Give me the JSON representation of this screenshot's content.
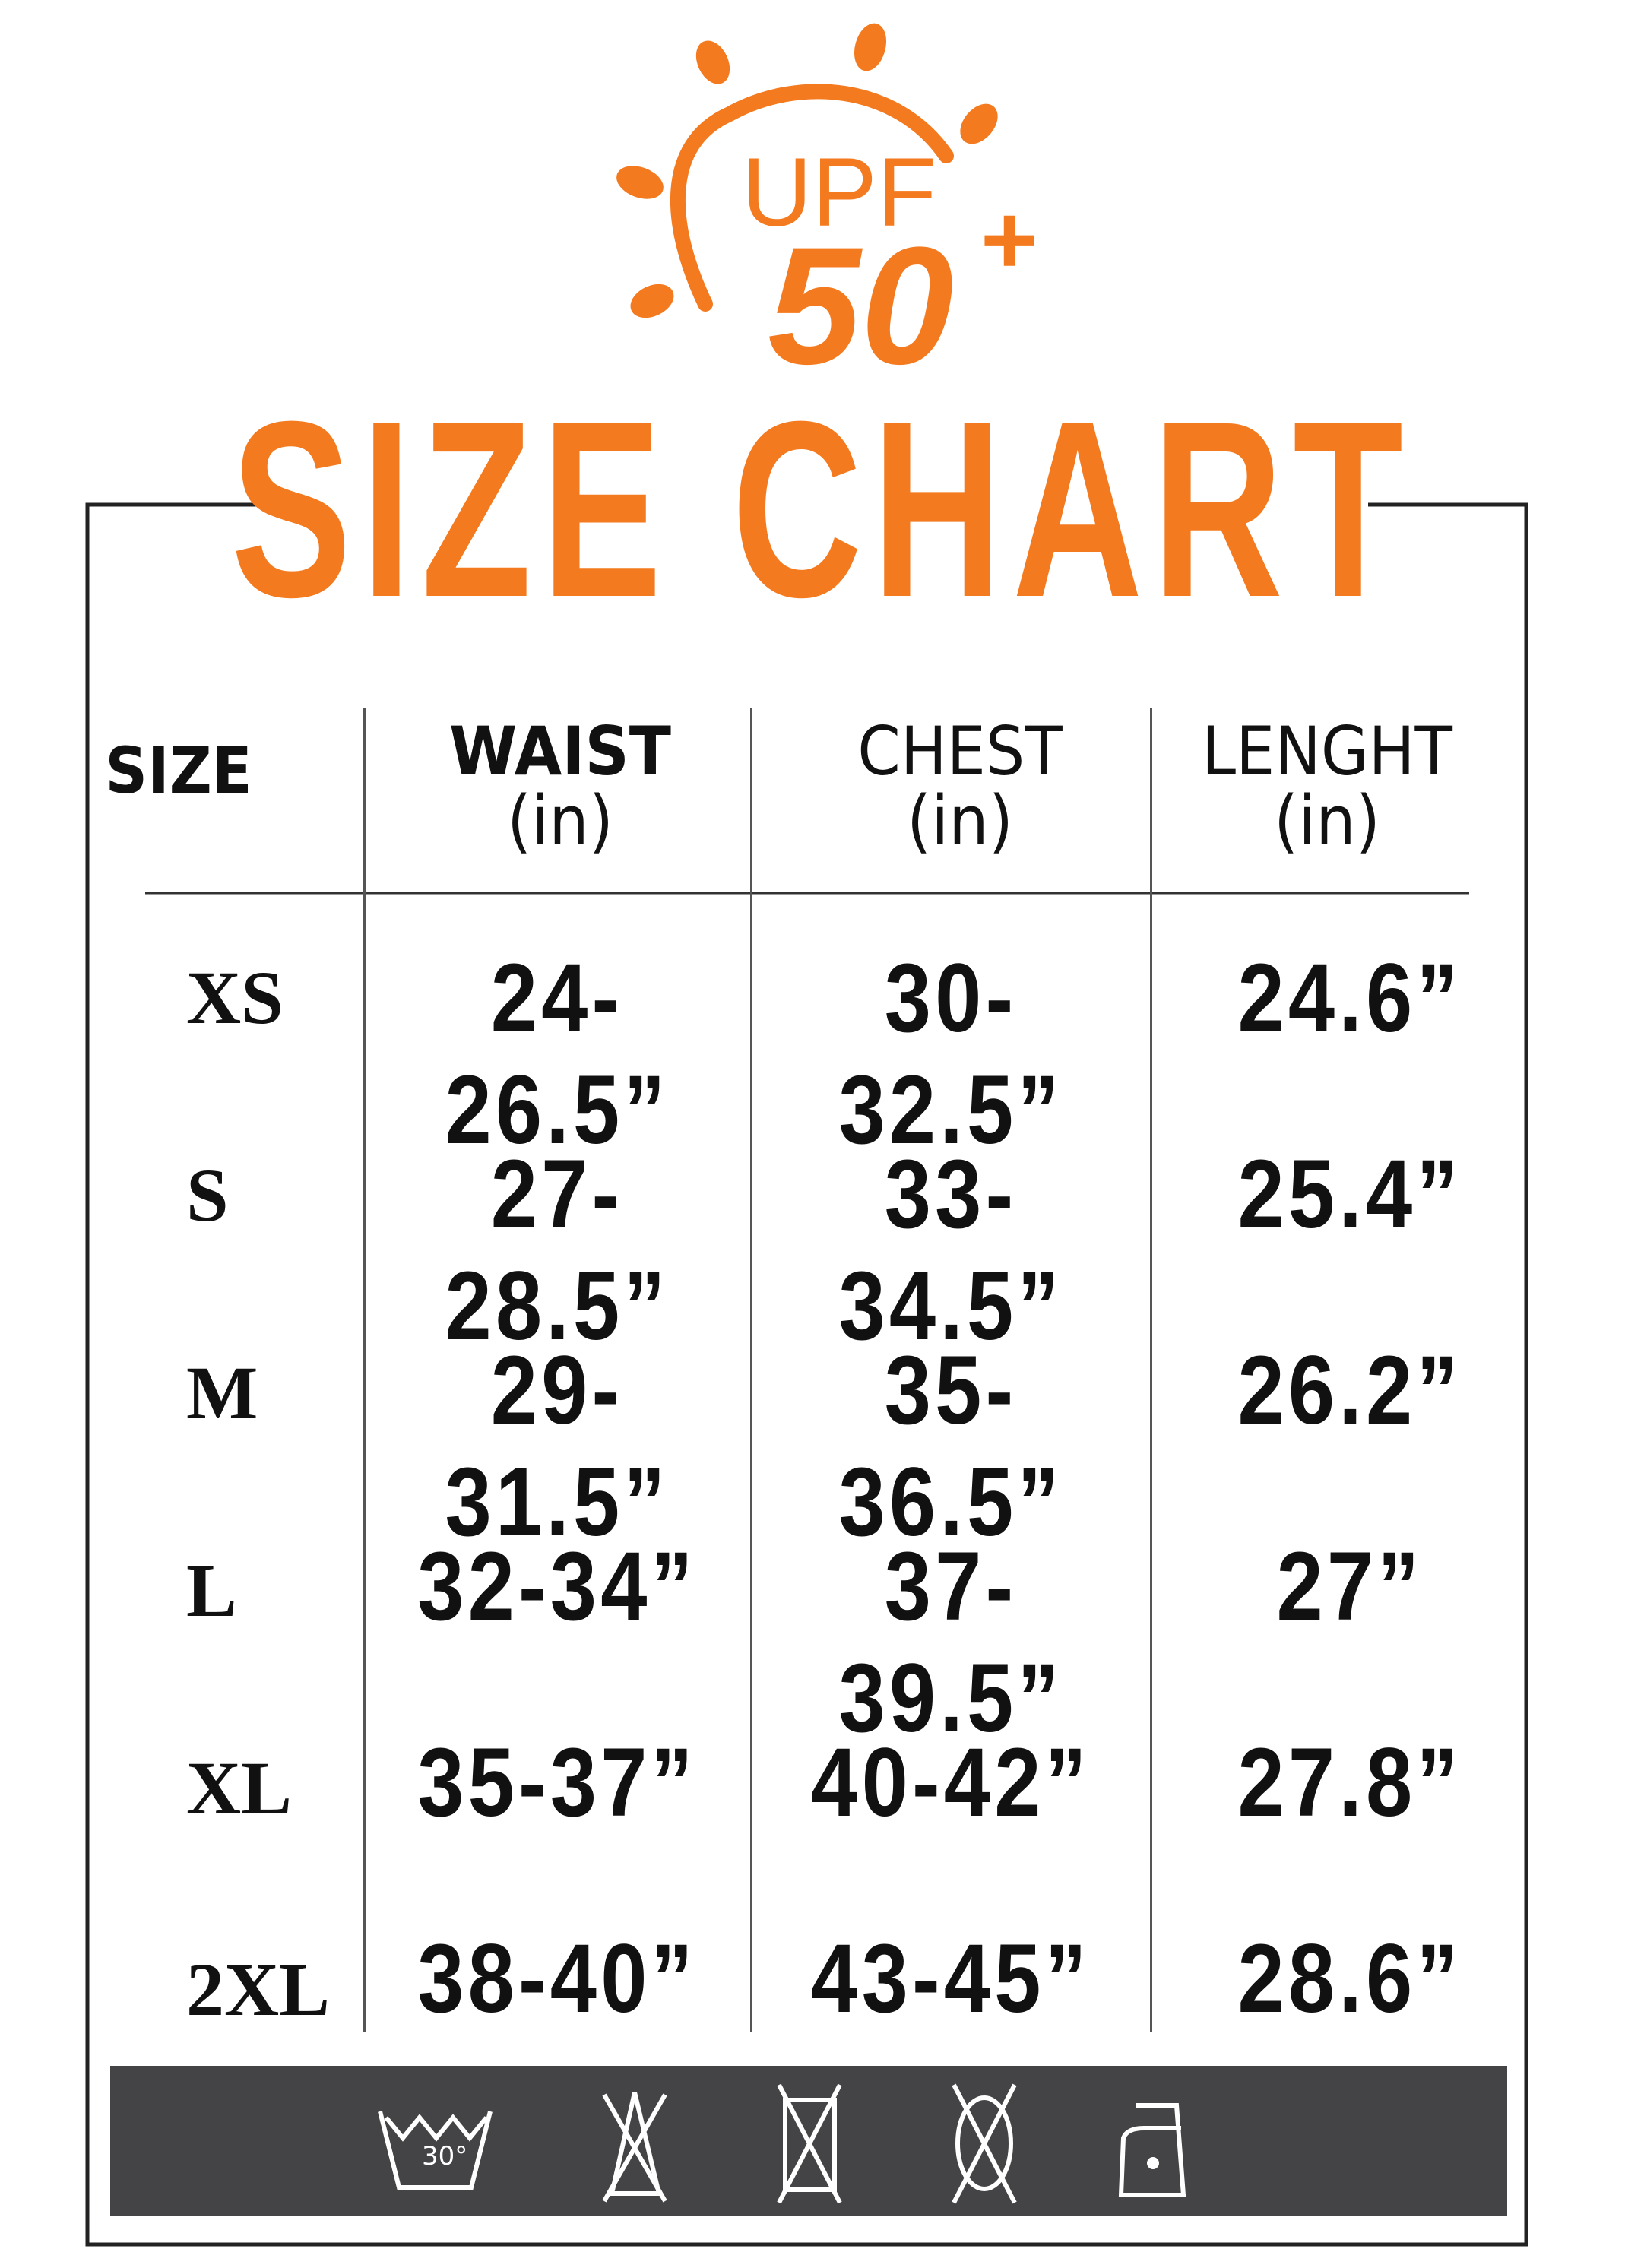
{
  "logo": {
    "text_top": "UPF",
    "text_bottom": "50",
    "superscript": "+",
    "color": "#f47a1f"
  },
  "title": "SIZE CHART",
  "table": {
    "headers": [
      {
        "label": "SIZE",
        "unit": ""
      },
      {
        "label": "WAIST",
        "unit": "(in)"
      },
      {
        "label": "CHEST",
        "unit": "(in)"
      },
      {
        "label": "LENGHT",
        "unit": "(in)"
      }
    ],
    "rows": [
      {
        "size": "XS",
        "waist": "24-26.5”",
        "chest": "30-32.5”",
        "length": "24.6”"
      },
      {
        "size": "S",
        "waist": "27-28.5”",
        "chest": "33-34.5”",
        "length": "25.4”"
      },
      {
        "size": "M",
        "waist": "29-31.5”",
        "chest": "35-36.5”",
        "length": "26.2”"
      },
      {
        "size": "L",
        "waist": "32-34”",
        "chest": "37-39.5”",
        "length": "27”"
      },
      {
        "size": "XL",
        "waist": "35-37”",
        "chest": "40-42”",
        "length": "27.8”"
      },
      {
        "size": "2XL",
        "waist": "38-40”",
        "chest": "43-45”",
        "length": "28.6”"
      }
    ]
  },
  "care": {
    "bar_color": "#444446",
    "wash_temp": "30°",
    "icons": [
      "wash-30-icon",
      "do-not-bleach-icon",
      "do-not-tumble-dry-icon",
      "do-not-dry-clean-icon",
      "iron-low-icon"
    ]
  }
}
